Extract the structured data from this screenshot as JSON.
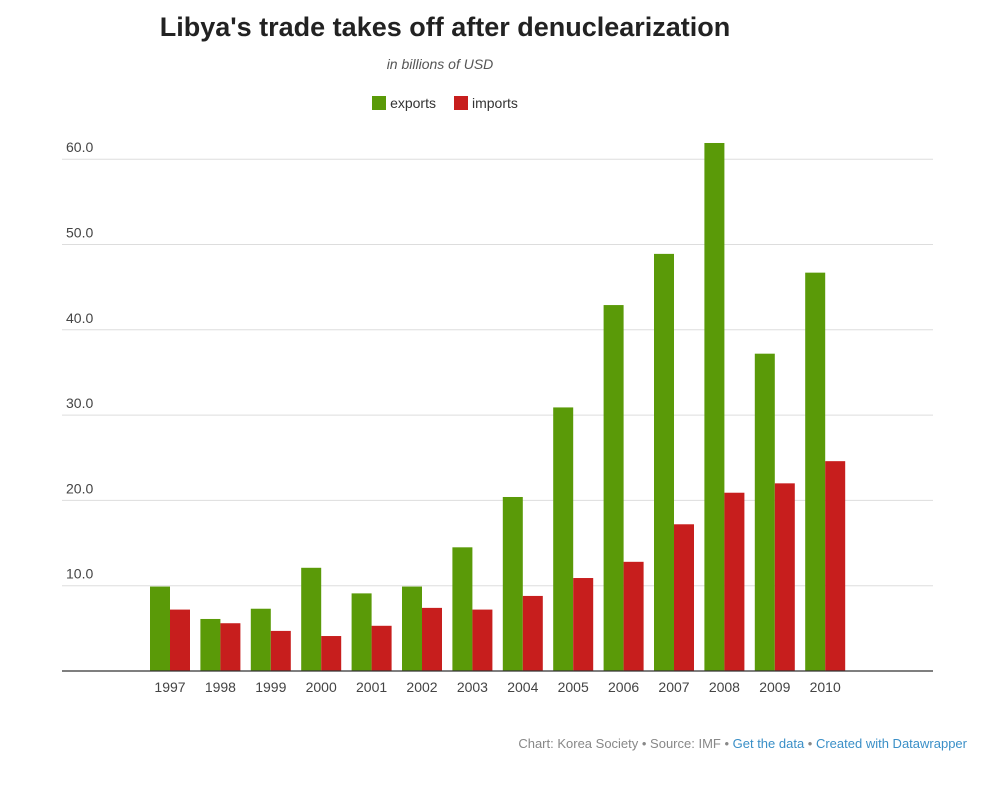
{
  "title": "Libya's trade takes off after denuclearization",
  "subtitle": "in billions of USD",
  "colors": {
    "exports": "#5a9a08",
    "imports": "#c71e1d",
    "grid": "#dddddd",
    "axis": "#333333"
  },
  "footer": {
    "credit": "Chart: Korea Society • Source: IMF • ",
    "get_data": "Get the data",
    "sep": " • ",
    "created": "Created with Datawrapper"
  },
  "chart_data": {
    "type": "bar",
    "title": "Libya's trade takes off after denuclearization",
    "subtitle": "in billions of USD",
    "categories": [
      "1997",
      "1998",
      "1999",
      "2000",
      "2001",
      "2002",
      "2003",
      "2004",
      "2005",
      "2006",
      "2007",
      "2008",
      "2009",
      "2010"
    ],
    "series": [
      {
        "name": "exports",
        "values": [
          9.9,
          6.1,
          7.3,
          12.1,
          9.1,
          9.9,
          14.5,
          20.4,
          30.9,
          42.9,
          48.9,
          61.9,
          37.2,
          46.7
        ]
      },
      {
        "name": "imports",
        "values": [
          7.2,
          5.6,
          4.7,
          4.1,
          5.3,
          7.4,
          7.2,
          8.8,
          10.9,
          12.8,
          17.2,
          20.9,
          22.0,
          24.6
        ]
      }
    ],
    "yticks": [
      "10.0",
      "20.0",
      "30.0",
      "40.0",
      "50.0",
      "60.0"
    ],
    "ylim": [
      0,
      62
    ],
    "legend": "top-center",
    "grid": true
  }
}
